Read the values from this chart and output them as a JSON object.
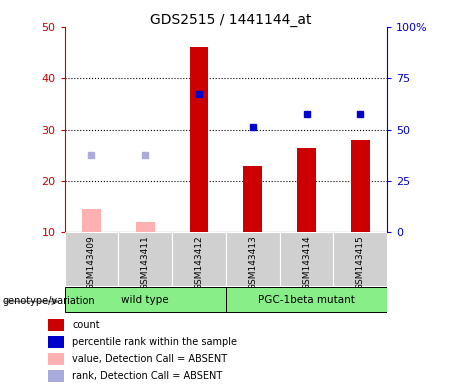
{
  "title": "GDS2515 / 1441144_at",
  "samples": [
    "GSM143409",
    "GSM143411",
    "GSM143412",
    "GSM143413",
    "GSM143414",
    "GSM143415"
  ],
  "counts_present": [
    null,
    null,
    46,
    23,
    26.5,
    28
  ],
  "counts_absent": [
    14.5,
    12,
    null,
    null,
    null,
    null
  ],
  "ranks_present_left": [
    null,
    null,
    37,
    30.5,
    33,
    33
  ],
  "ranks_absent_left": [
    25,
    25,
    null,
    null,
    null,
    null
  ],
  "ylim_left": [
    10,
    50
  ],
  "ylim_right": [
    0,
    100
  ],
  "yticks_left": [
    10,
    20,
    30,
    40,
    50
  ],
  "yticks_right": [
    0,
    25,
    50,
    75,
    100
  ],
  "ytick_labels_left": [
    "10",
    "20",
    "30",
    "40",
    "50"
  ],
  "ytick_labels_right": [
    "0",
    "25",
    "50",
    "75",
    "100%"
  ],
  "left_axis_color": "#cc0000",
  "right_axis_color": "#0000cc",
  "bar_color_present": "#cc0000",
  "bar_color_absent": "#ffb0b0",
  "rank_color_present": "#0000cc",
  "rank_color_absent": "#aaaadd",
  "bar_width": 0.35,
  "marker_size": 5,
  "legend_items": [
    {
      "label": "count",
      "color": "#cc0000"
    },
    {
      "label": "percentile rank within the sample",
      "color": "#0000cc"
    },
    {
      "label": "value, Detection Call = ABSENT",
      "color": "#ffb0b0"
    },
    {
      "label": "rank, Detection Call = ABSENT",
      "color": "#aaaadd"
    }
  ],
  "group_label_left": "genotype/variation",
  "groups": [
    {
      "label": "wild type",
      "start": 0,
      "end": 3,
      "color": "#88ee88"
    },
    {
      "label": "PGC-1beta mutant",
      "start": 3,
      "end": 6,
      "color": "#88ee88"
    }
  ]
}
